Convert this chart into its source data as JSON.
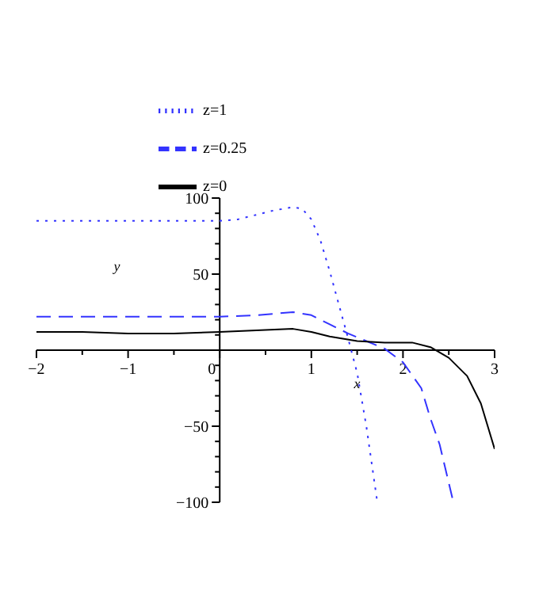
{
  "chart_data": {
    "type": "line",
    "xlabel": "x",
    "ylabel": "y",
    "xlim": [
      -2,
      3
    ],
    "ylim": [
      -100,
      100
    ],
    "xticks": [
      {
        "value": -2,
        "label": "−2"
      },
      {
        "value": -1.5,
        "label": null
      },
      {
        "value": -1,
        "label": "−1"
      },
      {
        "value": -0.5,
        "label": null
      },
      0,
      {
        "value": 0.5,
        "label": null
      },
      1,
      {
        "value": 1.5,
        "label": null
      },
      2,
      {
        "value": 2.5,
        "label": null
      },
      3
    ],
    "yticks": [
      {
        "value": -100,
        "label": "−100"
      },
      {
        "value": -90,
        "label": null
      },
      {
        "value": -80,
        "label": null
      },
      {
        "value": -70,
        "label": null
      },
      {
        "value": -60,
        "label": null
      },
      {
        "value": -50,
        "label": "−50"
      },
      {
        "value": -40,
        "label": null
      },
      {
        "value": -30,
        "label": null
      },
      {
        "value": -20,
        "label": null
      },
      {
        "value": -10,
        "label": null
      },
      {
        "value": 0,
        "label": null
      },
      {
        "value": 10,
        "label": null
      },
      {
        "value": 20,
        "label": null
      },
      {
        "value": 30,
        "label": null
      },
      {
        "value": 40,
        "label": null
      },
      50,
      {
        "value": 60,
        "label": null
      },
      {
        "value": 70,
        "label": null
      },
      {
        "value": 80,
        "label": null
      },
      {
        "value": 90,
        "label": null
      },
      100
    ],
    "grid": false,
    "legend": "top",
    "marker": "none",
    "series": [
      {
        "name": "z=1",
        "color": "#3333ff",
        "line_style": "dotted",
        "x": [
          -2,
          -1,
          0,
          0.2,
          0.4,
          0.6,
          0.8,
          0.9,
          1.0,
          1.1,
          1.2,
          1.3,
          1.4,
          1.5,
          1.6,
          1.72
        ],
        "values": [
          85,
          85,
          85,
          86,
          89,
          92,
          94,
          93,
          86,
          72,
          52,
          30,
          8,
          -15,
          -50,
          -100
        ]
      },
      {
        "name": "z=0.25",
        "color": "#3333ff",
        "line_style": "dashed",
        "x": [
          -2,
          -1,
          0,
          0.4,
          0.8,
          1.0,
          1.2,
          1.4,
          1.6,
          1.8,
          2.0,
          2.2,
          2.3,
          2.4,
          2.55
        ],
        "values": [
          22,
          22,
          22,
          23,
          25,
          23,
          17,
          11,
          6,
          1,
          -8,
          -25,
          -45,
          -62,
          -100
        ]
      },
      {
        "name": "z=0",
        "color": "#000000",
        "line_style": "solid",
        "x": [
          -2,
          -1.5,
          -1,
          -0.5,
          0,
          0.4,
          0.8,
          1.0,
          1.2,
          1.5,
          1.8,
          2.1,
          2.3,
          2.5,
          2.7,
          2.85,
          3
        ],
        "values": [
          12,
          12,
          11,
          11,
          12,
          13,
          14,
          12,
          9,
          6,
          5,
          5,
          2,
          -5,
          -17,
          -35,
          -65
        ]
      }
    ]
  }
}
